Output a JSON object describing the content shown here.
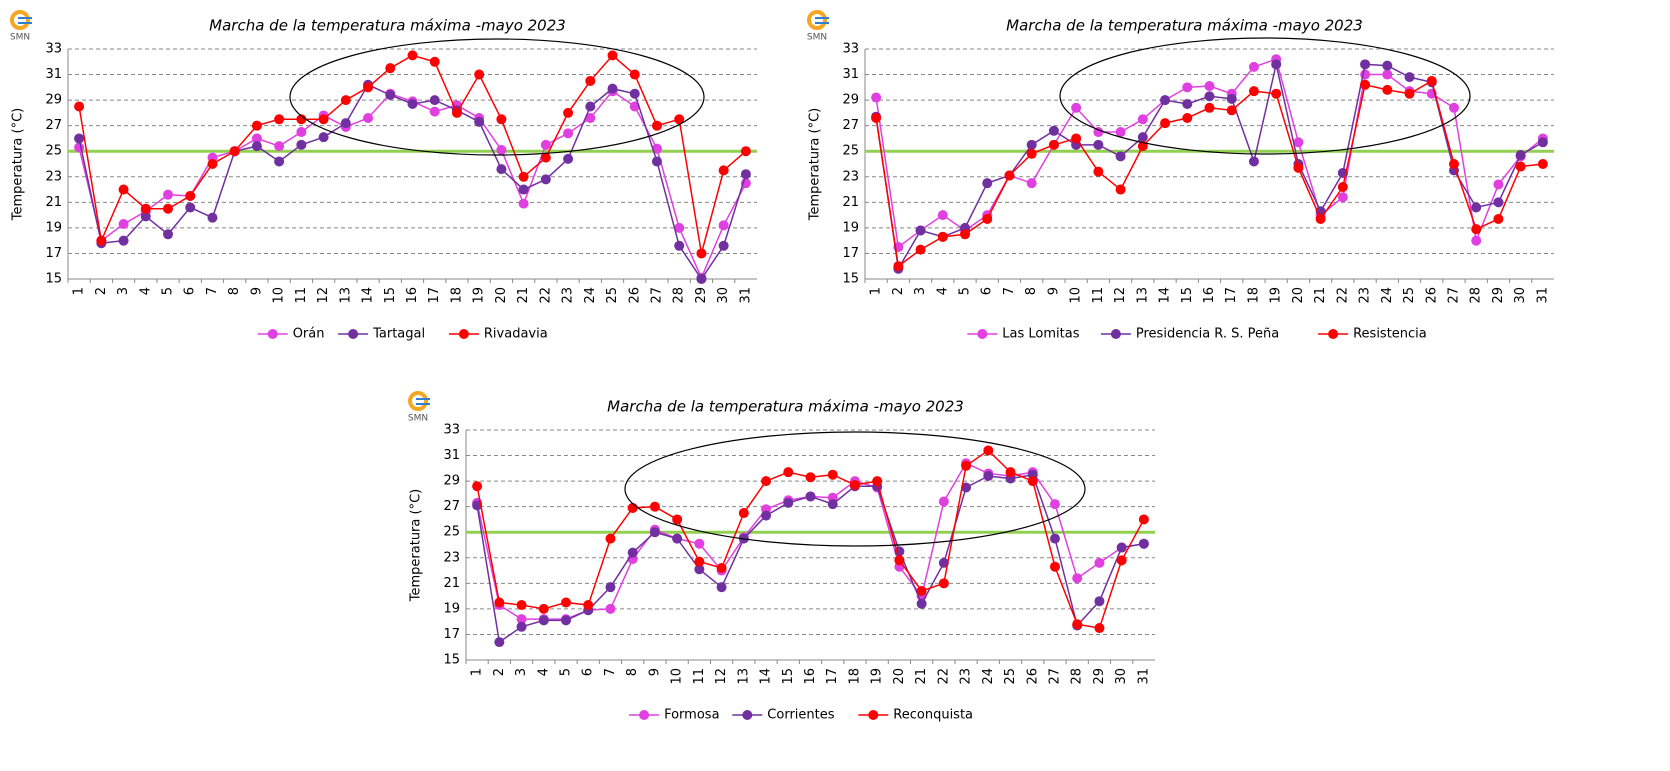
{
  "chart_data": [
    {
      "type": "line",
      "title": "Marcha de la  temperatura máxima -mayo 2023",
      "logo": "SMN",
      "y_label": "Temperatura (°C)",
      "categories": [
        "1",
        "2",
        "3",
        "4",
        "5",
        "6",
        "7",
        "8",
        "9",
        "10",
        "11",
        "12",
        "13",
        "14",
        "15",
        "16",
        "17",
        "18",
        "19",
        "20",
        "21",
        "22",
        "23",
        "24",
        "25",
        "26",
        "27",
        "28",
        "29",
        "30",
        "31"
      ],
      "ylim": [
        15,
        33
      ],
      "yticks": [
        15,
        17,
        19,
        21,
        23,
        25,
        27,
        29,
        31,
        33
      ],
      "grid": true,
      "legend": "bottom",
      "reference_line": 25,
      "reference_color": "#92d050",
      "series": [
        {
          "name": "Orán",
          "color": "#e040e0",
          "values": [
            25.3,
            18,
            19.3,
            20.3,
            21.6,
            21.5,
            24.5,
            25,
            26,
            25.4,
            26.5,
            27.8,
            26.9,
            27.6,
            29.5,
            28.9,
            28.1,
            28.6,
            27.6,
            25.1,
            20.9,
            25.5,
            26.4,
            27.6,
            29.7,
            28.5,
            25.2,
            19,
            15.1,
            19.2,
            22.5
          ]
        },
        {
          "name": "Tartagal",
          "color": "#7030a0",
          "values": [
            26,
            17.8,
            18,
            19.9,
            18.5,
            20.6,
            19.8,
            25,
            25.4,
            24.2,
            25.5,
            26.1,
            27.2,
            30.2,
            29.4,
            28.7,
            29,
            28.2,
            27.3,
            23.6,
            22,
            22.8,
            24.4,
            28.5,
            29.9,
            29.5,
            24.2,
            17.6,
            15,
            17.6,
            23.2
          ]
        },
        {
          "name": "Rivadavia",
          "color": "#ff0000",
          "values": [
            28.5,
            18,
            22,
            20.5,
            20.5,
            21.5,
            24,
            25,
            27,
            27.5,
            27.5,
            27.5,
            29,
            30,
            31.5,
            32.5,
            32,
            28,
            31,
            27.5,
            23,
            24.5,
            28,
            30.5,
            32.5,
            31,
            27,
            27.5,
            17,
            23.5,
            25
          ]
        }
      ]
    },
    {
      "type": "line",
      "title": "Marcha de la  temperatura máxima -mayo 2023",
      "logo": "SMN",
      "y_label": "Temperatura (°C)",
      "categories": [
        "1",
        "2",
        "3",
        "4",
        "5",
        "6",
        "7",
        "8",
        "9",
        "10",
        "11",
        "12",
        "13",
        "14",
        "15",
        "16",
        "17",
        "18",
        "19",
        "20",
        "21",
        "22",
        "23",
        "24",
        "25",
        "26",
        "27",
        "28",
        "29",
        "30",
        "31"
      ],
      "ylim": [
        15,
        33
      ],
      "yticks": [
        15,
        17,
        19,
        21,
        23,
        25,
        27,
        29,
        31,
        33
      ],
      "grid": true,
      "legend": "bottom",
      "reference_line": 25,
      "reference_color": "#92d050",
      "series": [
        {
          "name": "Las Lomitas",
          "color": "#e040e0",
          "values": [
            29.2,
            17.5,
            18.8,
            20,
            18.8,
            20,
            23.1,
            22.5,
            25.5,
            28.4,
            26.5,
            26.5,
            27.5,
            29,
            30,
            30.1,
            29.5,
            31.6,
            32.2,
            25.7,
            20,
            21.4,
            31,
            31,
            29.7,
            29.5,
            28.4,
            18,
            22.4,
            24.6,
            26
          ]
        },
        {
          "name": "Presidencia R. S. Peña",
          "color": "#7030a0",
          "values": [
            27.7,
            15.8,
            18.8,
            18.3,
            19,
            22.5,
            23.1,
            25.5,
            26.6,
            25.5,
            25.5,
            24.6,
            26.1,
            29,
            28.7,
            29.3,
            29.1,
            24.2,
            31.8,
            24,
            20.3,
            23.3,
            31.8,
            31.7,
            30.8,
            30.4,
            23.5,
            20.6,
            21,
            24.7,
            25.7
          ]
        },
        {
          "name": "Resistencia",
          "color": "#ff0000",
          "values": [
            27.6,
            16,
            17.3,
            18.3,
            18.5,
            19.7,
            23.1,
            24.8,
            25.5,
            26,
            23.4,
            22,
            25.4,
            27.2,
            27.6,
            28.4,
            28.2,
            29.7,
            29.5,
            23.7,
            19.7,
            22.2,
            30.2,
            29.8,
            29.5,
            30.5,
            24,
            18.9,
            19.7,
            23.8,
            24
          ]
        }
      ]
    },
    {
      "type": "line",
      "title": "Marcha de la  temperatura máxima -mayo 2023",
      "logo": "SMN",
      "y_label": "Temperatura (°C)",
      "categories": [
        "1",
        "2",
        "3",
        "4",
        "5",
        "6",
        "7",
        "8",
        "9",
        "10",
        "11",
        "12",
        "13",
        "14",
        "15",
        "16",
        "17",
        "18",
        "19",
        "20",
        "21",
        "22",
        "23",
        "24",
        "25",
        "26",
        "27",
        "28",
        "29",
        "30",
        "31"
      ],
      "ylim": [
        15,
        33
      ],
      "yticks": [
        15,
        17,
        19,
        21,
        23,
        25,
        27,
        29,
        31,
        33
      ],
      "grid": true,
      "legend": "bottom",
      "reference_line": 25,
      "reference_color": "#92d050",
      "series": [
        {
          "name": "Formosa",
          "color": "#e040e0",
          "values": [
            27.3,
            19.3,
            18.2,
            18.2,
            18.2,
            18.9,
            19,
            22.9,
            25.2,
            24.5,
            24.1,
            22,
            24.6,
            26.8,
            27.5,
            27.8,
            27.7,
            29,
            28.5,
            22.3,
            20,
            27.4,
            30.4,
            29.6,
            29.4,
            29.7,
            27.2,
            21.4,
            22.6,
            23.8,
            24.1
          ]
        },
        {
          "name": "Corrientes",
          "color": "#7030a0",
          "values": [
            27.1,
            16.4,
            17.6,
            18.1,
            18.1,
            18.9,
            20.7,
            23.4,
            25,
            24.5,
            22.1,
            20.7,
            24.5,
            26.3,
            27.3,
            27.8,
            27.2,
            28.6,
            28.6,
            23.5,
            19.4,
            22.6,
            28.5,
            29.4,
            29.2,
            29.5,
            24.5,
            17.7,
            19.6,
            23.8,
            24.1
          ]
        },
        {
          "name": "Reconquista",
          "color": "#ff0000",
          "values": [
            28.6,
            19.5,
            19.3,
            19,
            19.5,
            19.3,
            24.5,
            26.9,
            27,
            26,
            22.7,
            22.2,
            26.5,
            29,
            29.7,
            29.3,
            29.5,
            28.7,
            29,
            22.8,
            20.4,
            21,
            30.2,
            31.4,
            29.7,
            29,
            22.3,
            17.8,
            17.5,
            22.8,
            26
          ]
        }
      ]
    }
  ]
}
